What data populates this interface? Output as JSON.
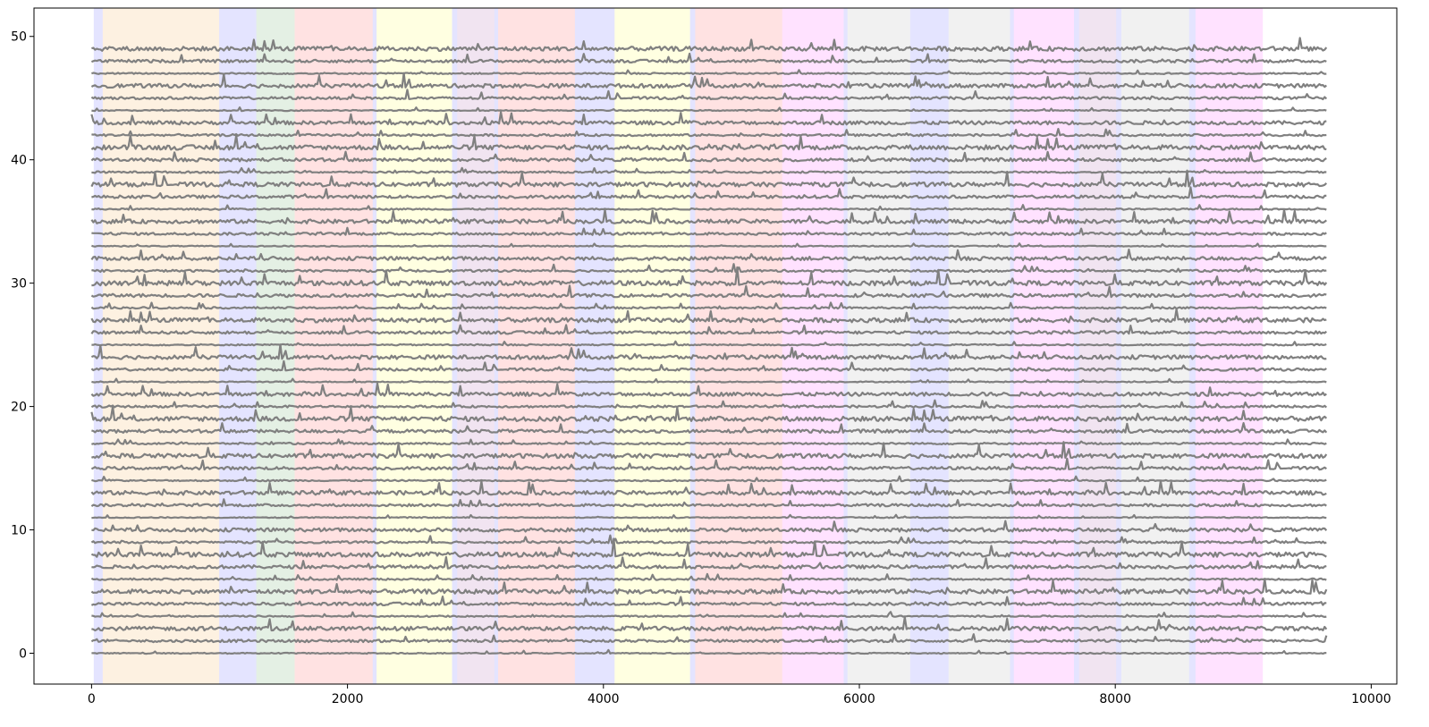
{
  "chart_data": {
    "type": "line",
    "title": "",
    "xlabel": "",
    "ylabel": "",
    "xlim": [
      -450,
      10200
    ],
    "ylim": [
      -2.5,
      52.3
    ],
    "x_ticks": [
      0,
      2000,
      4000,
      6000,
      8000,
      10000
    ],
    "y_ticks": [
      0,
      10,
      20,
      30,
      40,
      50
    ],
    "grid": false,
    "legend": "none",
    "trace_color": "#808080",
    "traces": {
      "count": 50,
      "offsets": [
        0,
        1,
        2,
        3,
        4,
        5,
        6,
        7,
        8,
        9,
        10,
        11,
        12,
        13,
        14,
        15,
        16,
        17,
        18,
        19,
        20,
        21,
        22,
        23,
        24,
        25,
        26,
        27,
        28,
        29,
        30,
        31,
        32,
        33,
        34,
        35,
        36,
        37,
        38,
        39,
        40,
        41,
        42,
        43,
        44,
        45,
        46,
        47,
        48,
        49
      ],
      "x_range": [
        0,
        9650
      ],
      "note": "stacked traces, one per integer offset"
    },
    "shaded_regions": [
      {
        "x": [
          20,
          90
        ],
        "color": "#e4e4ff"
      },
      {
        "x": [
          90,
          1000
        ],
        "color": "#fdf1e1"
      },
      {
        "x": [
          1000,
          1290
        ],
        "color": "#e4e4ff"
      },
      {
        "x": [
          1290,
          1590
        ],
        "color": "#e4f0e4"
      },
      {
        "x": [
          1590,
          2200
        ],
        "color": "#ffe2e2"
      },
      {
        "x": [
          2200,
          2230
        ],
        "color": "#e4e4ff"
      },
      {
        "x": [
          2230,
          2820
        ],
        "color": "#ffffe1"
      },
      {
        "x": [
          2820,
          2860
        ],
        "color": "#e4e4ff"
      },
      {
        "x": [
          2860,
          3150
        ],
        "color": "#f1e4f1"
      },
      {
        "x": [
          3150,
          3180
        ],
        "color": "#e4e4ff"
      },
      {
        "x": [
          3180,
          3780
        ],
        "color": "#ffe2e2"
      },
      {
        "x": [
          3780,
          4090
        ],
        "color": "#e4e4ff"
      },
      {
        "x": [
          4090,
          4680
        ],
        "color": "#ffffe1"
      },
      {
        "x": [
          4680,
          4720
        ],
        "color": "#e4e4ff"
      },
      {
        "x": [
          4720,
          5400
        ],
        "color": "#ffe2e2"
      },
      {
        "x": [
          5400,
          5880
        ],
        "color": "#ffe2ff"
      },
      {
        "x": [
          5880,
          5910
        ],
        "color": "#e4e4ff"
      },
      {
        "x": [
          5910,
          6400
        ],
        "color": "#f1f1f1"
      },
      {
        "x": [
          6400,
          6700
        ],
        "color": "#e4e4ff"
      },
      {
        "x": [
          6700,
          7180
        ],
        "color": "#f1f1f1"
      },
      {
        "x": [
          7180,
          7210
        ],
        "color": "#e4e4ff"
      },
      {
        "x": [
          7210,
          7680
        ],
        "color": "#ffe2ff"
      },
      {
        "x": [
          7680,
          7720
        ],
        "color": "#e4e4ff"
      },
      {
        "x": [
          7720,
          8010
        ],
        "color": "#f1e4f1"
      },
      {
        "x": [
          8010,
          8050
        ],
        "color": "#e4e4ff"
      },
      {
        "x": [
          8050,
          8580
        ],
        "color": "#f1f1f1"
      },
      {
        "x": [
          8580,
          8630
        ],
        "color": "#e4e4ff"
      },
      {
        "x": [
          8630,
          9150
        ],
        "color": "#ffe2ff"
      }
    ]
  }
}
